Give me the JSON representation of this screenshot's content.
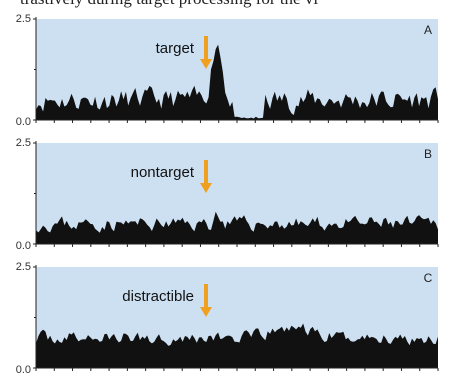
{
  "caption": "trastively during target processing for the vi",
  "colors": {
    "panel_bg": "#cde0f1",
    "signal": "#111111",
    "arrow": "#f0a020"
  },
  "chart_data": [
    {
      "type": "area",
      "panel_letter": "A",
      "annotation": "target",
      "ylim": [
        0,
        2.5
      ],
      "y_ticks": [
        "2.5",
        "0.0"
      ],
      "grid": false,
      "baseline_level": 0.5,
      "noise": 0.22,
      "peak": {
        "center": 0.45,
        "width": 0.018,
        "height": 1.45
      },
      "dip": {
        "start": 0.49,
        "end": 0.57,
        "level": 0.03
      },
      "hump": null,
      "seed": 11
    },
    {
      "type": "area",
      "panel_letter": "B",
      "annotation": "nontarget",
      "ylim": [
        0,
        2.5
      ],
      "y_ticks": [
        "2.5",
        "0.0"
      ],
      "grid": false,
      "baseline_level": 0.5,
      "noise": 0.14,
      "peak": {
        "center": 0.45,
        "width": 0.008,
        "height": 0.3
      },
      "dip": null,
      "hump": null,
      "seed": 23
    },
    {
      "type": "area",
      "panel_letter": "C",
      "annotation": "distractible",
      "ylim": [
        0,
        2.5
      ],
      "y_ticks": [
        "2.5",
        "0.0"
      ],
      "grid": false,
      "baseline_level": 0.75,
      "noise": 0.13,
      "peak": null,
      "dip": null,
      "hump": {
        "center": 0.64,
        "width": 0.06,
        "height": 0.25
      },
      "seed": 37
    }
  ]
}
